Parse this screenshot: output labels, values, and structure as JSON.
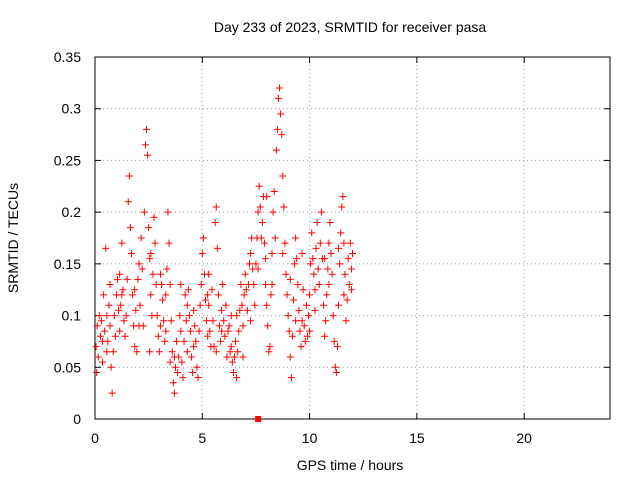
{
  "chart_data": {
    "type": "scatter",
    "title": "Day 233 of 2023, SRMTID for receiver pasa",
    "xlabel": "GPS time / hours",
    "ylabel": "SRMTID / TECUs",
    "xlim": [
      0,
      24
    ],
    "ylim": [
      0,
      0.35
    ],
    "xticks": [
      0,
      5,
      10,
      15,
      20
    ],
    "yticks": [
      0,
      0.05,
      0.1,
      0.15,
      0.2,
      0.25,
      0.3,
      0.35
    ],
    "xtick_labels": [
      "0",
      "5",
      "10",
      "15",
      "20"
    ],
    "ytick_labels": [
      "0",
      "0.05",
      "0.1",
      "0.15",
      "0.2",
      "0.25",
      "0.3",
      "0.35"
    ],
    "grid": true,
    "marker": "+",
    "color": "#ff0000",
    "points": [
      [
        0.05,
        0.07
      ],
      [
        0.1,
        0.09
      ],
      [
        0.15,
        0.06
      ],
      [
        0.2,
        0.1
      ],
      [
        0.25,
        0.08
      ],
      [
        0.3,
        0.095
      ],
      [
        0.35,
        0.055
      ],
      [
        0.4,
        0.12
      ],
      [
        0.45,
        0.085
      ],
      [
        0.5,
        0.165
      ],
      [
        0.55,
        0.1
      ],
      [
        0.6,
        0.075
      ],
      [
        0.65,
        0.11
      ],
      [
        0.7,
        0.09
      ],
      [
        0.75,
        0.05
      ],
      [
        0.8,
        0.025
      ],
      [
        0.85,
        0.065
      ],
      [
        0.9,
        0.1
      ],
      [
        0.95,
        0.08
      ],
      [
        1.0,
        0.12
      ],
      [
        1.05,
        0.135
      ],
      [
        1.1,
        0.105
      ],
      [
        1.15,
        0.14
      ],
      [
        1.2,
        0.11
      ],
      [
        1.25,
        0.17
      ],
      [
        1.3,
        0.125
      ],
      [
        1.35,
        0.095
      ],
      [
        1.4,
        0.08
      ],
      [
        1.45,
        0.1
      ],
      [
        1.5,
        0.135
      ],
      [
        1.55,
        0.21
      ],
      [
        1.6,
        0.235
      ],
      [
        1.65,
        0.185
      ],
      [
        1.7,
        0.16
      ],
      [
        1.75,
        0.12
      ],
      [
        1.8,
        0.09
      ],
      [
        1.85,
        0.07
      ],
      [
        1.9,
        0.105
      ],
      [
        1.95,
        0.065
      ],
      [
        2.0,
        0.135
      ],
      [
        2.05,
        0.15
      ],
      [
        2.1,
        0.11
      ],
      [
        2.15,
        0.175
      ],
      [
        2.2,
        0.145
      ],
      [
        2.25,
        0.09
      ],
      [
        2.3,
        0.2
      ],
      [
        2.35,
        0.265
      ],
      [
        2.4,
        0.28
      ],
      [
        2.45,
        0.255
      ],
      [
        2.5,
        0.185
      ],
      [
        2.55,
        0.155
      ],
      [
        2.6,
        0.12
      ],
      [
        2.65,
        0.1
      ],
      [
        2.7,
        0.14
      ],
      [
        2.75,
        0.195
      ],
      [
        2.8,
        0.17
      ],
      [
        2.85,
        0.13
      ],
      [
        2.9,
        0.1
      ],
      [
        2.95,
        0.08
      ],
      [
        3.0,
        0.065
      ],
      [
        3.05,
        0.09
      ],
      [
        3.1,
        0.13
      ],
      [
        3.15,
        0.115
      ],
      [
        3.2,
        0.095
      ],
      [
        3.25,
        0.075
      ],
      [
        3.3,
        0.12
      ],
      [
        3.35,
        0.145
      ],
      [
        3.4,
        0.2
      ],
      [
        3.45,
        0.17
      ],
      [
        3.5,
        0.13
      ],
      [
        3.55,
        0.095
      ],
      [
        3.6,
        0.065
      ],
      [
        3.65,
        0.035
      ],
      [
        3.7,
        0.025
      ],
      [
        3.75,
        0.05
      ],
      [
        3.8,
        0.075
      ],
      [
        3.85,
        0.045
      ],
      [
        3.9,
        0.06
      ],
      [
        3.95,
        0.1
      ],
      [
        4.0,
        0.085
      ],
      [
        4.05,
        0.055
      ],
      [
        4.1,
        0.04
      ],
      [
        4.15,
        0.075
      ],
      [
        4.2,
        0.12
      ],
      [
        4.25,
        0.095
      ],
      [
        4.3,
        0.065
      ],
      [
        4.35,
        0.125
      ],
      [
        4.4,
        0.1
      ],
      [
        4.45,
        0.085
      ],
      [
        4.5,
        0.06
      ],
      [
        4.55,
        0.045
      ],
      [
        4.6,
        0.07
      ],
      [
        4.65,
        0.09
      ],
      [
        4.7,
        0.075
      ],
      [
        4.75,
        0.05
      ],
      [
        4.8,
        0.04
      ],
      [
        4.85,
        0.085
      ],
      [
        4.9,
        0.11
      ],
      [
        4.95,
        0.13
      ],
      [
        5.0,
        0.16
      ],
      [
        5.05,
        0.175
      ],
      [
        5.1,
        0.14
      ],
      [
        5.15,
        0.115
      ],
      [
        5.2,
        0.095
      ],
      [
        5.25,
        0.08
      ],
      [
        5.3,
        0.11
      ],
      [
        5.35,
        0.085
      ],
      [
        5.4,
        0.07
      ],
      [
        5.45,
        0.125
      ],
      [
        5.5,
        0.095
      ],
      [
        5.55,
        0.07
      ],
      [
        5.6,
        0.19
      ],
      [
        5.65,
        0.205
      ],
      [
        5.7,
        0.165
      ],
      [
        5.75,
        0.12
      ],
      [
        5.8,
        0.09
      ],
      [
        5.85,
        0.075
      ],
      [
        5.9,
        0.105
      ],
      [
        5.95,
        0.13
      ],
      [
        6.0,
        0.095
      ],
      [
        6.05,
        0.08
      ],
      [
        6.1,
        0.11
      ],
      [
        6.15,
        0.06
      ],
      [
        6.2,
        0.085
      ],
      [
        6.25,
        0.09
      ],
      [
        6.3,
        0.065
      ],
      [
        6.35,
        0.07
      ],
      [
        6.4,
        0.055
      ],
      [
        6.45,
        0.045
      ],
      [
        6.5,
        0.06
      ],
      [
        6.55,
        0.075
      ],
      [
        6.6,
        0.04
      ],
      [
        6.65,
        0.065
      ],
      [
        6.7,
        0.085
      ],
      [
        6.75,
        0.105
      ],
      [
        6.8,
        0.13
      ],
      [
        6.85,
        0.11
      ],
      [
        6.9,
        0.09
      ],
      [
        6.95,
        0.12
      ],
      [
        7.0,
        0.14
      ],
      [
        7.05,
        0.125
      ],
      [
        7.1,
        0.105
      ],
      [
        7.15,
        0.13
      ],
      [
        7.2,
        0.15
      ],
      [
        7.25,
        0.16
      ],
      [
        7.3,
        0.175
      ],
      [
        7.35,
        0.145
      ],
      [
        7.4,
        0.13
      ],
      [
        7.45,
        0.11
      ],
      [
        7.5,
        0.15
      ],
      [
        7.55,
        0.175
      ],
      [
        7.6,
        0.2
      ],
      [
        7.65,
        0.225
      ],
      [
        7.7,
        0.205
      ],
      [
        7.75,
        0.175
      ],
      [
        7.8,
        0.19
      ],
      [
        7.85,
        0.215
      ],
      [
        7.9,
        0.17
      ],
      [
        7.95,
        0.155
      ],
      [
        8.0,
        0.11
      ],
      [
        8.05,
        0.09
      ],
      [
        8.1,
        0.065
      ],
      [
        8.15,
        0.07
      ],
      [
        8.2,
        0.12
      ],
      [
        8.25,
        0.16
      ],
      [
        8.3,
        0.2
      ],
      [
        8.35,
        0.22
      ],
      [
        8.4,
        0.175
      ],
      [
        8.45,
        0.26
      ],
      [
        8.5,
        0.28
      ],
      [
        8.55,
        0.31
      ],
      [
        8.6,
        0.32
      ],
      [
        8.65,
        0.295
      ],
      [
        8.7,
        0.275
      ],
      [
        8.75,
        0.235
      ],
      [
        8.8,
        0.205
      ],
      [
        8.85,
        0.17
      ],
      [
        8.9,
        0.14
      ],
      [
        8.95,
        0.12
      ],
      [
        9.0,
        0.1
      ],
      [
        9.05,
        0.085
      ],
      [
        9.1,
        0.06
      ],
      [
        9.15,
        0.04
      ],
      [
        9.2,
        0.08
      ],
      [
        9.25,
        0.115
      ],
      [
        9.3,
        0.15
      ],
      [
        9.35,
        0.175
      ],
      [
        9.4,
        0.155
      ],
      [
        9.45,
        0.13
      ],
      [
        9.5,
        0.105
      ],
      [
        9.55,
        0.085
      ],
      [
        9.6,
        0.07
      ],
      [
        9.65,
        0.095
      ],
      [
        9.7,
        0.125
      ],
      [
        9.75,
        0.09
      ],
      [
        9.8,
        0.075
      ],
      [
        9.85,
        0.11
      ],
      [
        9.9,
        0.08
      ],
      [
        9.95,
        0.1
      ],
      [
        10.0,
        0.12
      ],
      [
        10.05,
        0.15
      ],
      [
        10.1,
        0.18
      ],
      [
        10.15,
        0.155
      ],
      [
        10.2,
        0.14
      ],
      [
        10.25,
        0.125
      ],
      [
        10.3,
        0.165
      ],
      [
        10.35,
        0.19
      ],
      [
        10.4,
        0.145
      ],
      [
        10.45,
        0.13
      ],
      [
        10.5,
        0.17
      ],
      [
        10.55,
        0.2
      ],
      [
        10.6,
        0.155
      ],
      [
        10.65,
        0.11
      ],
      [
        10.7,
        0.08
      ],
      [
        10.75,
        0.095
      ],
      [
        10.8,
        0.12
      ],
      [
        10.85,
        0.145
      ],
      [
        10.9,
        0.17
      ],
      [
        10.95,
        0.19
      ],
      [
        11.0,
        0.16
      ],
      [
        11.05,
        0.14
      ],
      [
        11.1,
        0.1
      ],
      [
        11.15,
        0.075
      ],
      [
        11.2,
        0.05
      ],
      [
        11.25,
        0.045
      ],
      [
        11.3,
        0.07
      ],
      [
        11.35,
        0.11
      ],
      [
        11.4,
        0.15
      ],
      [
        11.45,
        0.18
      ],
      [
        11.5,
        0.205
      ],
      [
        11.55,
        0.215
      ],
      [
        11.6,
        0.17
      ],
      [
        11.65,
        0.14
      ],
      [
        11.7,
        0.095
      ],
      [
        11.75,
        0.115
      ],
      [
        11.8,
        0.155
      ],
      [
        11.85,
        0.13
      ],
      [
        11.9,
        0.17
      ],
      [
        11.95,
        0.145
      ],
      [
        12.0,
        0.16
      ],
      [
        0.08,
        0.045
      ],
      [
        0.35,
        0.075
      ],
      [
        0.55,
        0.065
      ],
      [
        1.25,
        0.12
      ],
      [
        2.05,
        0.09
      ],
      [
        2.55,
        0.065
      ],
      [
        3.05,
        0.14
      ],
      [
        3.5,
        0.055
      ],
      [
        4.3,
        0.11
      ],
      [
        5.3,
        0.14
      ],
      [
        5.65,
        0.065
      ],
      [
        6.35,
        0.1
      ],
      [
        6.9,
        0.06
      ],
      [
        7.6,
        0.145
      ],
      [
        8.25,
        0.13
      ],
      [
        9.1,
        0.135
      ],
      [
        9.65,
        0.16
      ],
      [
        10.25,
        0.105
      ],
      [
        10.9,
        0.13
      ],
      [
        11.6,
        0.12
      ],
      [
        0.7,
        0.13
      ],
      [
        1.15,
        0.085
      ],
      [
        1.85,
        0.125
      ],
      [
        2.6,
        0.16
      ],
      [
        3.3,
        0.085
      ],
      [
        4.0,
        0.13
      ],
      [
        4.6,
        0.105
      ],
      [
        5.25,
        0.12
      ],
      [
        5.9,
        0.085
      ],
      [
        6.6,
        0.1
      ],
      [
        7.25,
        0.095
      ],
      [
        7.95,
        0.13
      ],
      [
        8.75,
        0.16
      ],
      [
        9.35,
        0.095
      ],
      [
        10.0,
        0.085
      ],
      [
        10.7,
        0.155
      ],
      [
        11.35,
        0.165
      ],
      [
        11.95,
        0.125
      ],
      [
        3.7,
        0.06
      ],
      [
        8.0,
        0.215
      ]
    ],
    "highlight_marker": {
      "x": 7.6,
      "y": 0.0
    }
  }
}
